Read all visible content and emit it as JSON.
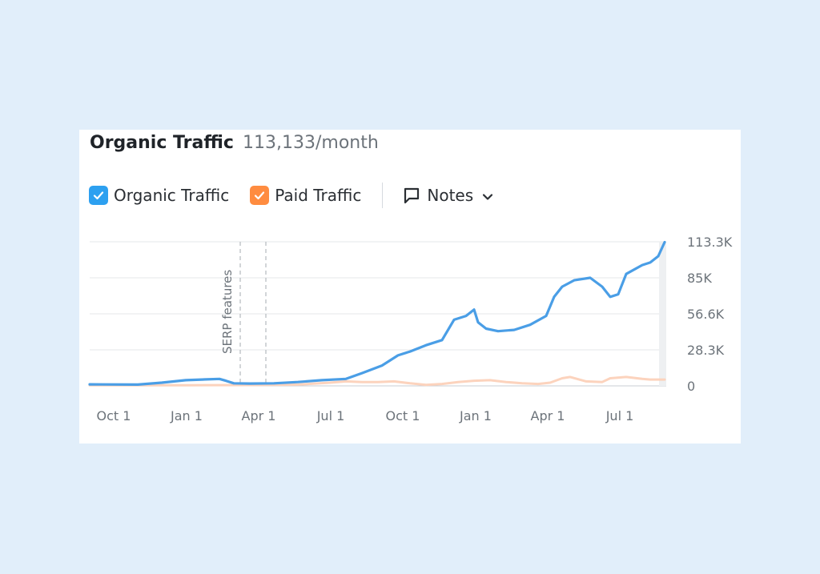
{
  "header": {
    "title": "Organic Traffic",
    "total": "113,133/month"
  },
  "legend": {
    "organic": {
      "label": "Organic Traffic",
      "color": "#2da0f0",
      "checked": true,
      "icon": "check-icon"
    },
    "paid": {
      "label": "Paid Traffic",
      "color": "#ff8c40",
      "checked": true,
      "icon": "check-icon"
    },
    "notes": {
      "label": "Notes",
      "icon": "speech-bubble-icon",
      "dropdown_icon": "chevron-down-icon"
    }
  },
  "chart_data": {
    "type": "line",
    "x_ticks": [
      "Oct 1",
      "Jan 1",
      "Apr 1",
      "Jul 1",
      "Oct 1",
      "Jan 1",
      "Apr 1",
      "Jul 1"
    ],
    "y_ticks": [
      "113.3K",
      "85K",
      "56.6K",
      "28.3K",
      "0"
    ],
    "ylim": [
      0,
      113300
    ],
    "annotations": [
      {
        "label": "SERP features"
      }
    ],
    "grid": true,
    "series": [
      {
        "name": "Organic Traffic",
        "color": "#4a9ee6",
        "points": [
          [
            0,
            1200
          ],
          [
            60,
            1000
          ],
          [
            90,
            2500
          ],
          [
            120,
            4500
          ],
          [
            140,
            5000
          ],
          [
            162,
            5500
          ],
          [
            170,
            4000
          ],
          [
            180,
            2000
          ],
          [
            200,
            1800
          ],
          [
            230,
            2000
          ],
          [
            260,
            3000
          ],
          [
            290,
            4500
          ],
          [
            320,
            5500
          ],
          [
            340,
            10000
          ],
          [
            365,
            16000
          ],
          [
            385,
            24000
          ],
          [
            400,
            27000
          ],
          [
            420,
            32000
          ],
          [
            440,
            36000
          ],
          [
            455,
            52000
          ],
          [
            470,
            55000
          ],
          [
            480,
            60000
          ],
          [
            485,
            50000
          ],
          [
            495,
            45000
          ],
          [
            510,
            43000
          ],
          [
            530,
            44000
          ],
          [
            550,
            48000
          ],
          [
            570,
            55000
          ],
          [
            580,
            70000
          ],
          [
            590,
            78000
          ],
          [
            605,
            83000
          ],
          [
            625,
            85000
          ],
          [
            640,
            78000
          ],
          [
            650,
            70000
          ],
          [
            660,
            72000
          ],
          [
            670,
            88000
          ],
          [
            690,
            95000
          ],
          [
            700,
            97000
          ],
          [
            710,
            102000
          ],
          [
            718,
            113000
          ]
        ]
      },
      {
        "name": "Paid Traffic",
        "color": "#fcd3bd",
        "points": [
          [
            0,
            500
          ],
          [
            120,
            500
          ],
          [
            200,
            600
          ],
          [
            260,
            1000
          ],
          [
            300,
            2500
          ],
          [
            320,
            3500
          ],
          [
            340,
            3000
          ],
          [
            360,
            3000
          ],
          [
            380,
            3500
          ],
          [
            400,
            2000
          ],
          [
            420,
            800
          ],
          [
            440,
            1500
          ],
          [
            460,
            3000
          ],
          [
            480,
            4000
          ],
          [
            500,
            4500
          ],
          [
            520,
            3000
          ],
          [
            540,
            2000
          ],
          [
            560,
            1500
          ],
          [
            575,
            2500
          ],
          [
            590,
            6000
          ],
          [
            600,
            7000
          ],
          [
            620,
            3500
          ],
          [
            640,
            3000
          ],
          [
            650,
            6000
          ],
          [
            670,
            7000
          ],
          [
            690,
            5500
          ],
          [
            700,
            5000
          ],
          [
            718,
            5000
          ]
        ]
      }
    ]
  }
}
